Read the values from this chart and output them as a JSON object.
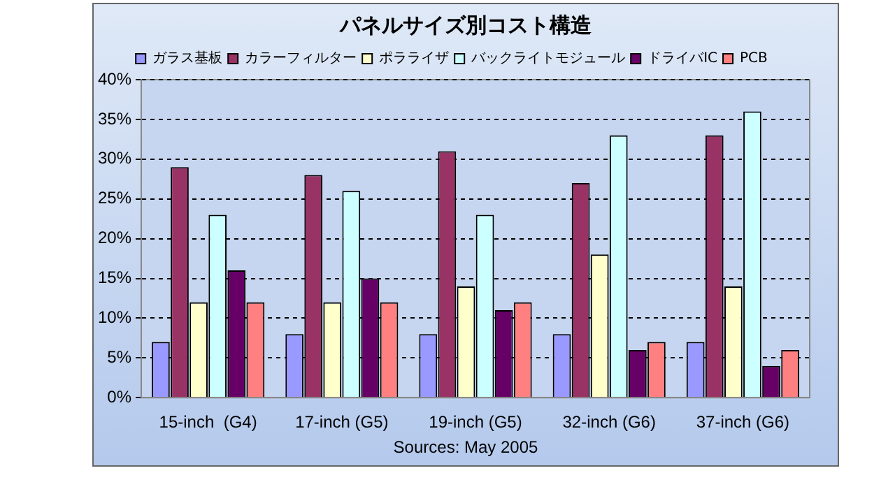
{
  "chart_data": {
    "type": "bar",
    "title": "パネルサイズ別コスト構造",
    "categories": [
      "15-inch  (G4)",
      "17-inch (G5)",
      "19-inch (G5)",
      "32-inch (G6)",
      "37-inch (G6)"
    ],
    "series": [
      {
        "name": "ガラス基板",
        "color": "#9999ff",
        "values": [
          7,
          8,
          8,
          8,
          7
        ]
      },
      {
        "name": "カラーフィルター",
        "color": "#993366",
        "values": [
          29,
          28,
          31,
          27,
          33
        ]
      },
      {
        "name": "ポラライザ",
        "color": "#ffffcc",
        "values": [
          12,
          12,
          14,
          18,
          14
        ]
      },
      {
        "name": "バックライトモジュール",
        "color": "#ccffff",
        "values": [
          23,
          26,
          23,
          33,
          36
        ]
      },
      {
        "name": "ドライバIC",
        "color": "#660066",
        "values": [
          16,
          15,
          11,
          6,
          4
        ]
      },
      {
        "name": "PCB",
        "color": "#ff8080",
        "values": [
          12,
          12,
          12,
          7,
          6
        ]
      }
    ],
    "ylim": [
      0,
      40
    ],
    "yticks": [
      {
        "value": 0,
        "label": "0%"
      },
      {
        "value": 5,
        "label": "5%"
      },
      {
        "value": 10,
        "label": "10%"
      },
      {
        "value": 15,
        "label": "15%"
      },
      {
        "value": 20,
        "label": "20%"
      },
      {
        "value": 25,
        "label": "25%"
      },
      {
        "value": 30,
        "label": "30%"
      },
      {
        "value": 35,
        "label": "35%"
      },
      {
        "value": 40,
        "label": "40%"
      }
    ],
    "grid": "y",
    "legend": "top",
    "line_style": "dashed",
    "annotations": [
      "Sources: May 2005"
    ]
  }
}
